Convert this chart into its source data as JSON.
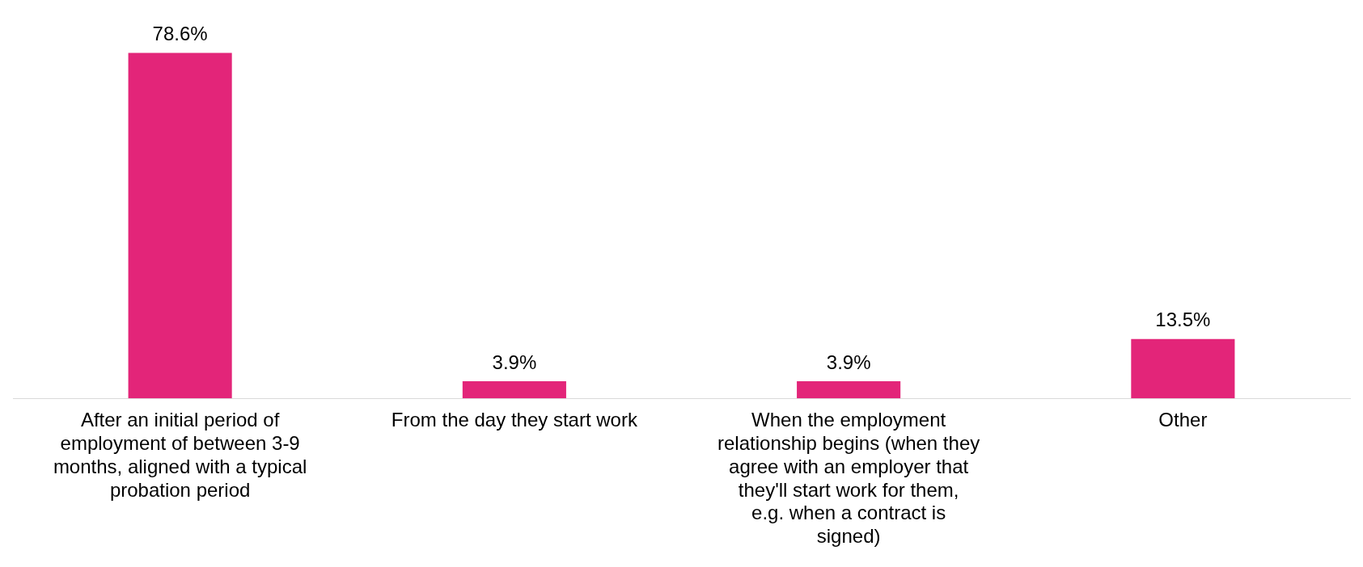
{
  "chart_data": {
    "type": "bar",
    "categories": [
      "After an initial period of employment of between 3-9 months, aligned with a typical probation period",
      "From the day they start work",
      "When the employment relationship begins (when they agree with an employer that they'll start work for them, e.g. when a contract is signed)",
      "Other"
    ],
    "values": [
      78.6,
      3.9,
      3.9,
      13.5
    ],
    "value_labels": [
      "78.6%",
      "3.9%",
      "3.9%",
      "13.5%"
    ],
    "color": "#e32579",
    "grid": false,
    "legend": false
  }
}
